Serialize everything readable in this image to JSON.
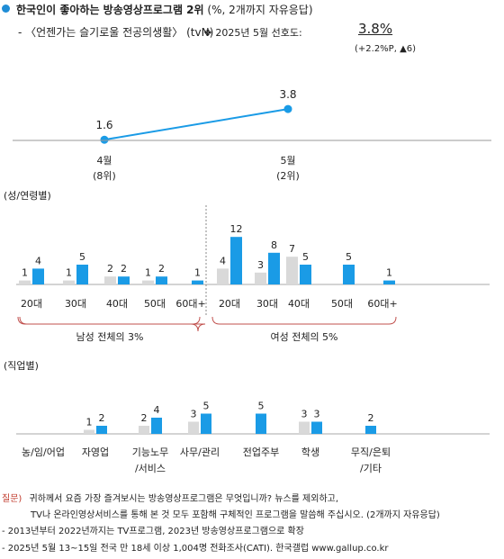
{
  "header": {
    "title": "한국인이 좋아하는 방송영상프로그램 2위",
    "title_unit": "(%, 2개까지 자유응답)",
    "subtitle": "- 〈언젠가는 슬기로울 전공의생활〉 (tvN)",
    "month_label": "❖  2025년 5월 선호도:",
    "month_value": "3.8%",
    "change": "(+2.2%P, ▲6)"
  },
  "chart_data": [
    {
      "type": "line",
      "categories": [
        "4월",
        "5월"
      ],
      "sub_labels": [
        "(8위)",
        "(2위)"
      ],
      "values": [
        1.6,
        3.8
      ],
      "value_labels": [
        "1.6",
        "3.8"
      ],
      "color": "#1a9be6"
    },
    {
      "type": "bar",
      "title": "(성/연령별)",
      "categories": [
        "20대",
        "30대",
        "40대",
        "50대",
        "60대+",
        "20대",
        "30대",
        "40대",
        "50대",
        "60대+"
      ],
      "series": [
        {
          "values": [
            1,
            1,
            2,
            1,
            null,
            4,
            3,
            7,
            null,
            null
          ],
          "color": "#d9d9d9"
        },
        {
          "values": [
            4,
            5,
            2,
            2,
            1,
            12,
            8,
            5,
            5,
            1
          ],
          "color": "#1a9be6"
        }
      ],
      "groups": [
        "남성 전체의 3%",
        "여성 전체의 5%"
      ]
    },
    {
      "type": "bar",
      "title": "(직업별)",
      "categories": [
        "농/임/어업",
        "자영업",
        "기능노무\n/서비스",
        "사무/관리",
        "전업주부",
        "학생",
        "무직/은퇴\n/기타"
      ],
      "series": [
        {
          "values": [
            null,
            1,
            2,
            3,
            null,
            3,
            null
          ],
          "color": "#d9d9d9"
        },
        {
          "values": [
            null,
            2,
            4,
            5,
            5,
            3,
            2
          ],
          "color": "#1a9be6"
        }
      ]
    }
  ],
  "footnotes": {
    "question_label": "질문)",
    "question_line1": "귀하께서 요즘 가장 즐겨보시는 방송영상프로그램은 무엇입니까? 뉴스를 제외하고,",
    "question_line2": "TV나 온라인영상서비스를 통해 본 것 모두 포함해 구체적인 프로그램을 말씀해 주십시오. (2개까지 자유응답)",
    "note1": "- 2013년부터 2022년까지는 TV프로그램, 2023년 방송영상프로그램으로 확장",
    "note2": "- 2025년 5월 13~15일 전국 만 18세 이상 1,004명 전화조사(CATI). 한국갤럽 www.gallup.co.kr"
  }
}
